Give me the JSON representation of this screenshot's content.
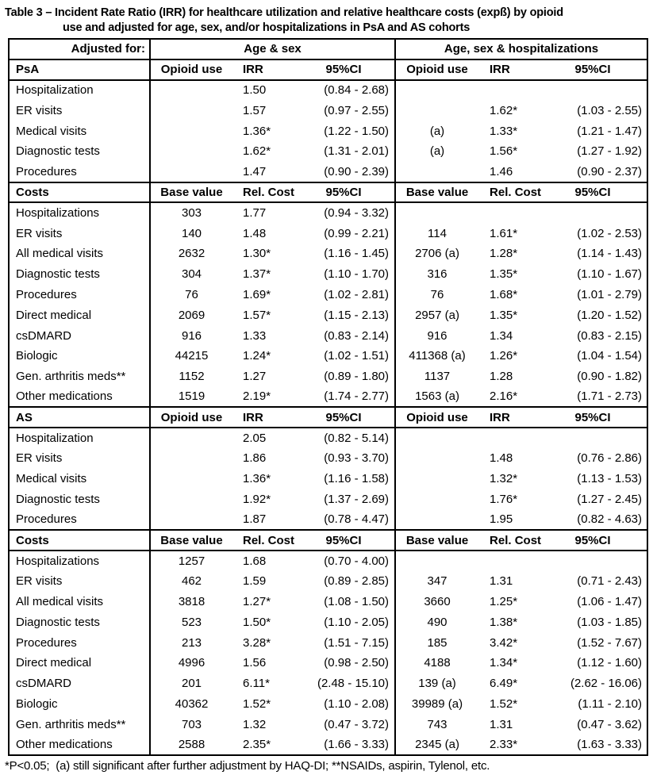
{
  "title": {
    "line1": "Table 3 – Incident Rate Ratio (IRR) for healthcare utilization and relative healthcare costs (expß) by opioid",
    "line2": "use and adjusted for age, sex, and/or hospitalizations in PsA and AS cohorts"
  },
  "table": {
    "corner_label": "Adjusted for:",
    "group_headers": [
      "Age & sex",
      "Age, sex & hospitalizations"
    ],
    "sections": [
      {
        "name": "PsA",
        "columns": [
          "Opioid use",
          "IRR",
          "95%CI",
          "Opioid use",
          "IRR",
          "95%CI"
        ],
        "rows": [
          {
            "label": "Hospitalization",
            "cells": [
              "",
              "1.50",
              "(0.84 - 2.68)",
              "",
              "",
              ""
            ]
          },
          {
            "label": "ER visits",
            "cells": [
              "",
              "1.57",
              "(0.97 - 2.55)",
              "",
              "1.62*",
              "(1.03 - 2.55)"
            ]
          },
          {
            "label": "Medical visits",
            "cells": [
              "",
              "1.36*",
              "(1.22 - 1.50)",
              "(a)",
              "1.33*",
              "(1.21 - 1.47)"
            ]
          },
          {
            "label": "Diagnostic tests",
            "cells": [
              "",
              "1.62*",
              "(1.31 - 2.01)",
              "(a)",
              "1.56*",
              "(1.27 - 1.92)"
            ]
          },
          {
            "label": "Procedures",
            "cells": [
              "",
              "1.47",
              "(0.90 - 2.39)",
              "",
              "1.46",
              "(0.90 - 2.37)"
            ]
          }
        ]
      },
      {
        "name": "Costs",
        "columns": [
          "Base value",
          "Rel. Cost",
          "95%CI",
          "Base value",
          "Rel. Cost",
          "95%CI"
        ],
        "rows": [
          {
            "label": "Hospitalizations",
            "cells": [
              "303",
              "1.77",
              "(0.94 - 3.32)",
              "",
              "",
              ""
            ]
          },
          {
            "label": "ER visits",
            "cells": [
              "140",
              "1.48",
              "(0.99 - 2.21)",
              "114",
              "1.61*",
              "(1.02 - 2.53)"
            ]
          },
          {
            "label": "All medical visits",
            "cells": [
              "2632",
              "1.30*",
              "(1.16 - 1.45)",
              "2706 (a)",
              "1.28*",
              "(1.14 - 1.43)"
            ]
          },
          {
            "label": "Diagnostic tests",
            "cells": [
              "304",
              "1.37*",
              "(1.10 - 1.70)",
              "316",
              "1.35*",
              "(1.10 - 1.67)"
            ]
          },
          {
            "label": "Procedures",
            "cells": [
              "76",
              "1.69*",
              "(1.02 - 2.81)",
              "76",
              "1.68*",
              "(1.01 - 2.79)"
            ]
          },
          {
            "label": "Direct medical",
            "cells": [
              "2069",
              "1.57*",
              "(1.15 - 2.13)",
              "2957 (a)",
              "1.35*",
              "(1.20 - 1.52)"
            ]
          },
          {
            "label": "csDMARD",
            "cells": [
              "916",
              "1.33",
              "(0.83 - 2.14)",
              "916",
              "1.34",
              "(0.83 - 2.15)"
            ]
          },
          {
            "label": "Biologic",
            "cells": [
              "44215",
              "1.24*",
              "(1.02 - 1.51)",
              "411368 (a)",
              "1.26*",
              "(1.04 - 1.54)"
            ]
          },
          {
            "label": "Gen. arthritis meds**",
            "cells": [
              "1152",
              "1.27",
              "(0.89 - 1.80)",
              "1137",
              "1.28",
              "(0.90 - 1.82)"
            ]
          },
          {
            "label": "Other medications",
            "cells": [
              "1519",
              "2.19*",
              "(1.74 - 2.77)",
              "1563 (a)",
              "2.16*",
              "(1.71 - 2.73)"
            ]
          }
        ]
      },
      {
        "name": "AS",
        "columns": [
          "Opioid use",
          "IRR",
          "95%CI",
          "Opioid use",
          "IRR",
          "95%CI"
        ],
        "rows": [
          {
            "label": "Hospitalization",
            "cells": [
              "",
              "2.05",
              "(0.82 - 5.14)",
              "",
              "",
              ""
            ]
          },
          {
            "label": "ER visits",
            "cells": [
              "",
              "1.86",
              "(0.93 - 3.70)",
              "",
              "1.48",
              "(0.76 - 2.86)"
            ]
          },
          {
            "label": "Medical visits",
            "cells": [
              "",
              "1.36*",
              "(1.16 - 1.58)",
              "",
              "1.32*",
              "(1.13 - 1.53)"
            ]
          },
          {
            "label": "Diagnostic tests",
            "cells": [
              "",
              "1.92*",
              "(1.37 - 2.69)",
              "",
              "1.76*",
              "(1.27 - 2.45)"
            ]
          },
          {
            "label": "Procedures",
            "cells": [
              "",
              "1.87",
              "(0.78 - 4.47)",
              "",
              "1.95",
              "(0.82 - 4.63)"
            ]
          }
        ]
      },
      {
        "name": "Costs",
        "columns": [
          "Base value",
          "Rel. Cost",
          "95%CI",
          "Base value",
          "Rel. Cost",
          "95%CI"
        ],
        "rows": [
          {
            "label": "Hospitalizations",
            "cells": [
              "1257",
              "1.68",
              "(0.70 - 4.00)",
              "",
              "",
              ""
            ]
          },
          {
            "label": "ER visits",
            "cells": [
              "462",
              "1.59",
              "(0.89 - 2.85)",
              "347",
              "1.31",
              "(0.71 - 2.43)"
            ]
          },
          {
            "label": "All medical visits",
            "cells": [
              "3818",
              "1.27*",
              "(1.08 - 1.50)",
              "3660",
              "1.25*",
              "(1.06 - 1.47)"
            ]
          },
          {
            "label": "Diagnostic tests",
            "cells": [
              "523",
              "1.50*",
              "(1.10 - 2.05)",
              "490",
              "1.38*",
              "(1.03 - 1.85)"
            ]
          },
          {
            "label": "Procedures",
            "cells": [
              "213",
              "3.28*",
              "(1.51 - 7.15)",
              "185",
              "3.42*",
              "(1.52 - 7.67)"
            ]
          },
          {
            "label": "Direct medical",
            "cells": [
              "4996",
              "1.56",
              "(0.98 - 2.50)",
              "4188",
              "1.34*",
              "(1.12 - 1.60)"
            ]
          },
          {
            "label": "csDMARD",
            "cells": [
              "201",
              "6.11*",
              "(2.48 - 15.10)",
              "139 (a)",
              "6.49*",
              "(2.62 - 16.06)"
            ]
          },
          {
            "label": "Biologic",
            "cells": [
              "40362",
              "1.52*",
              "(1.10 - 2.08)",
              "39989 (a)",
              "1.52*",
              "(1.11 - 2.10)"
            ]
          },
          {
            "label": "Gen. arthritis meds**",
            "cells": [
              "703",
              "1.32",
              "(0.47 - 3.72)",
              "743",
              "1.31",
              "(0.47 - 3.62)"
            ]
          },
          {
            "label": "Other medications",
            "cells": [
              "2588",
              "2.35*",
              "(1.66 - 3.33)",
              "2345 (a)",
              "2.33*",
              "(1.63 - 3.33)"
            ]
          }
        ]
      }
    ]
  },
  "footnote": "*P<0.05;  (a) still significant after further adjustment by HAQ-DI; **NSAIDs, aspirin, Tylenol, etc.",
  "colors": {
    "text": "#000000",
    "border": "#000000",
    "background": "#ffffff"
  }
}
